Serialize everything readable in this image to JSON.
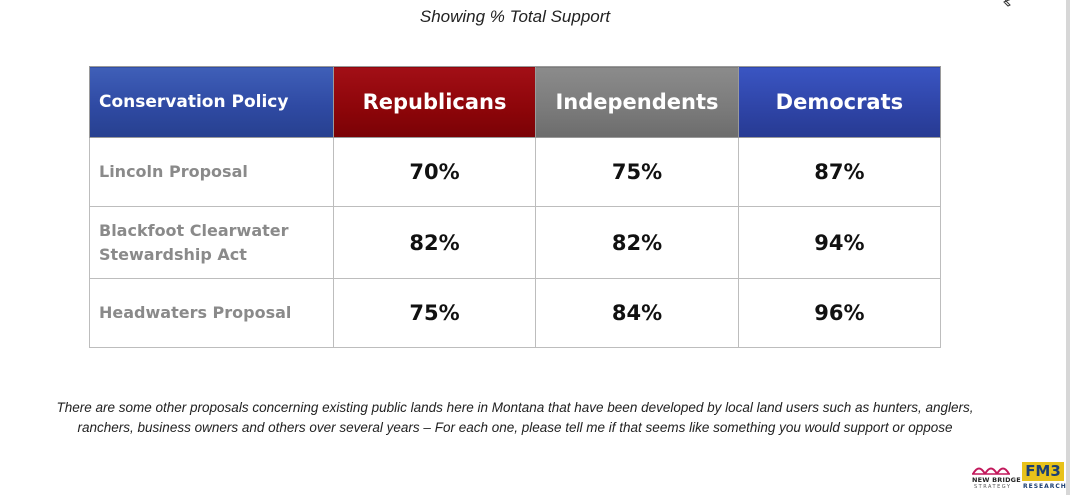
{
  "subtitle": "Showing % Total Support",
  "table": {
    "headers": {
      "policy": "Conservation Policy",
      "republicans": "Republicans",
      "independents": "Independents",
      "democrats": "Democrats"
    },
    "rows": [
      {
        "name_lines": [
          "Lincoln Proposal"
        ],
        "republicans": "70%",
        "independents": "75%",
        "democrats": "87%"
      },
      {
        "name_lines": [
          "Blackfoot Clearwater",
          "Stewardship Act"
        ],
        "republicans": "82%",
        "independents": "82%",
        "democrats": "94%"
      },
      {
        "name_lines": [
          "Headwaters Proposal"
        ],
        "republicans": "75%",
        "independents": "84%",
        "democrats": "96%"
      }
    ]
  },
  "footnote": {
    "line1": "There are some other proposals concerning existing public lands here in Montana that have been developed by local land users such as hunters, anglers,",
    "line2": "ranchers, business owners and others over several years – For each one, please tell me if that seems like something you would support or oppose"
  },
  "logos": {
    "new_bridge": {
      "name": "NEW BRIDGE",
      "sub": "STRATEGY",
      "icon": "bridge-arches-icon"
    },
    "fm3": {
      "name": "FM3",
      "sub": "RESEARCH"
    }
  },
  "colors": {
    "header_policy": "#2f4aa3",
    "header_republicans": "#8c0509",
    "header_independents": "#7a7a7a",
    "header_democrats": "#2f45a8",
    "policy_text": "#8a8a8a",
    "fm3_yellow": "#e8c21a",
    "fm3_blue": "#1c3f73",
    "new_bridge_magenta": "#c2185b"
  }
}
